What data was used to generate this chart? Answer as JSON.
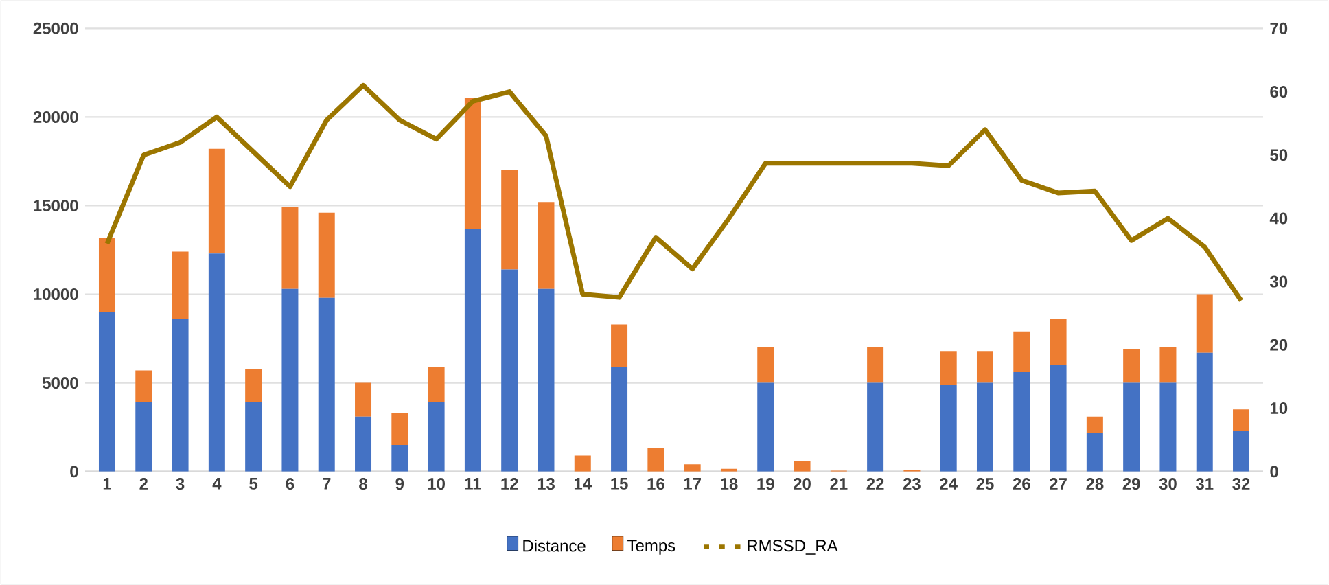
{
  "chart_data": {
    "type": "bar",
    "stacked": true,
    "categories": [
      "1",
      "2",
      "3",
      "4",
      "5",
      "6",
      "7",
      "8",
      "9",
      "10",
      "11",
      "12",
      "13",
      "14",
      "15",
      "16",
      "17",
      "18",
      "19",
      "20",
      "21",
      "22",
      "23",
      "24",
      "25",
      "26",
      "27",
      "28",
      "29",
      "30",
      "31",
      "32"
    ],
    "series": [
      {
        "name": "Distance",
        "color": "#4472c4",
        "values": [
          9000,
          3900,
          8600,
          12300,
          3900,
          10300,
          9800,
          3100,
          1500,
          3900,
          13700,
          11400,
          10300,
          0,
          5900,
          0,
          0,
          0,
          5000,
          0,
          0,
          5000,
          0,
          4900,
          5000,
          5600,
          6000,
          2200,
          5000,
          5000,
          6700,
          2300
        ]
      },
      {
        "name": "Temps",
        "color": "#ed7d31",
        "values": [
          4200,
          1800,
          3800,
          5900,
          1900,
          4600,
          4800,
          1900,
          1800,
          2000,
          7400,
          5600,
          4900,
          900,
          2400,
          1300,
          400,
          150,
          2000,
          600,
          50,
          2000,
          100,
          1900,
          1800,
          2300,
          2600,
          900,
          1900,
          2000,
          3300,
          1200
        ]
      },
      {
        "name": "RMSSD_RA",
        "color": "#9c7600",
        "type": "line",
        "axis": "y2",
        "values": [
          36,
          50,
          52,
          56,
          50.5,
          45,
          55.5,
          61,
          55.5,
          52.5,
          58.5,
          60,
          53,
          28,
          27.5,
          37,
          32,
          40,
          48.7,
          48.7,
          48.7,
          48.7,
          48.7,
          48.3,
          54,
          46,
          44,
          44.3,
          36.5,
          40,
          35.5,
          27
        ]
      }
    ],
    "ylim": [
      0,
      25000
    ],
    "yticks": [
      0,
      5000,
      10000,
      15000,
      20000,
      25000
    ],
    "y2lim": [
      0,
      70
    ],
    "y2ticks": [
      0,
      10,
      20,
      30,
      40,
      50,
      60,
      70
    ],
    "grid": "y",
    "legend": "bottom",
    "marker": "none",
    "line_style": "solid"
  }
}
